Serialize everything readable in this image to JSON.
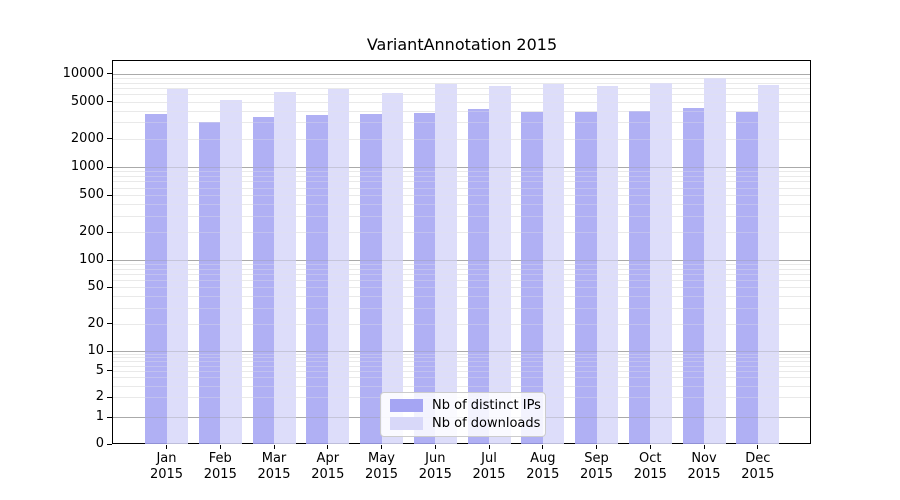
{
  "figure": {
    "title": "VariantAnnotation 2015"
  },
  "chart_data": {
    "type": "bar",
    "title": "VariantAnnotation 2015",
    "categories": [
      "Jan",
      "Feb",
      "Mar",
      "Apr",
      "May",
      "Jun",
      "Jul",
      "Aug",
      "Sep",
      "Oct",
      "Nov",
      "Dec"
    ],
    "x_tick_year": "2015",
    "series": [
      {
        "key": "distinct-ips",
        "name": "Nb of distinct IPs",
        "color": "#a5a5f3",
        "values": [
          3700,
          3050,
          3400,
          3600,
          3650,
          3800,
          4150,
          3850,
          3900,
          3950,
          4300,
          3850
        ]
      },
      {
        "key": "downloads",
        "name": "Nb of downloads",
        "color": "#d8d8f9",
        "values": [
          6800,
          5200,
          6300,
          6800,
          6250,
          7800,
          7400,
          7650,
          7300,
          8000,
          8900,
          7500
        ]
      }
    ],
    "y_ticks": [
      10000,
      5000,
      2000,
      1000,
      500,
      200,
      100,
      50,
      20,
      10,
      5,
      2,
      1,
      0
    ],
    "y_scale": "log with 0 pinned at baseline",
    "ylim": [
      0,
      13000
    ],
    "grid": "horizontal log major and minor gridlines, drawn visible through semi-transparent bars",
    "legend_position": "bottom-center inside plot",
    "colors": {
      "grid_major": "#aaaaaa",
      "grid_minor": "#e9e9e9",
      "axis": "#000000",
      "legend_border": "#cccccc",
      "background": "#ffffff"
    }
  }
}
